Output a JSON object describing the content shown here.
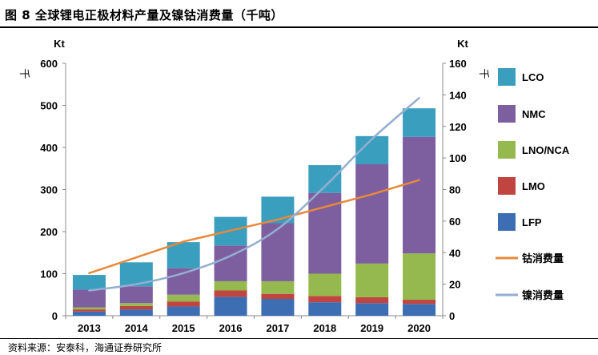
{
  "figure": {
    "title": "图 8  全球锂电正极材料产量及镍钴消费量（千吨）",
    "source": "资料来源：安泰科，海通证券研究所"
  },
  "chart_data": {
    "type": "bar",
    "stacked": true,
    "categories": [
      "2013",
      "2014",
      "2015",
      "2016",
      "2017",
      "2018",
      "2019",
      "2020"
    ],
    "series": [
      {
        "name": "LFP",
        "color": "#3d6eb3",
        "values": [
          10,
          15,
          22,
          45,
          40,
          32,
          30,
          28
        ]
      },
      {
        "name": "LMO",
        "color": "#c0443f",
        "values": [
          5,
          8,
          12,
          15,
          12,
          15,
          14,
          10
        ]
      },
      {
        "name": "LNO/NCA",
        "color": "#96b94f",
        "values": [
          5,
          7,
          16,
          22,
          30,
          53,
          80,
          110
        ]
      },
      {
        "name": "NMC",
        "color": "#7d5fa0",
        "values": [
          42,
          40,
          63,
          85,
          138,
          192,
          236,
          277
        ]
      },
      {
        "name": "LCO",
        "color": "#3a9fbf",
        "values": [
          35,
          57,
          62,
          68,
          63,
          66,
          67,
          68
        ]
      }
    ],
    "lines": [
      {
        "name": "钴消费量",
        "color": "#e9883a",
        "axis": "right",
        "values": [
          27,
          37,
          47,
          54,
          61,
          69,
          77,
          86
        ]
      },
      {
        "name": "镍消费量",
        "color": "#94aed2",
        "axis": "right",
        "values": [
          16,
          20,
          27,
          38,
          55,
          82,
          112,
          138
        ]
      }
    ],
    "left_axis": {
      "unit": "Kt",
      "label": "千",
      "min": 0,
      "max": 600,
      "step": 100
    },
    "right_axis": {
      "unit": "Kt",
      "label": "千",
      "min": 0,
      "max": 160,
      "step": 20
    },
    "grid": false,
    "legend_position": "right"
  }
}
